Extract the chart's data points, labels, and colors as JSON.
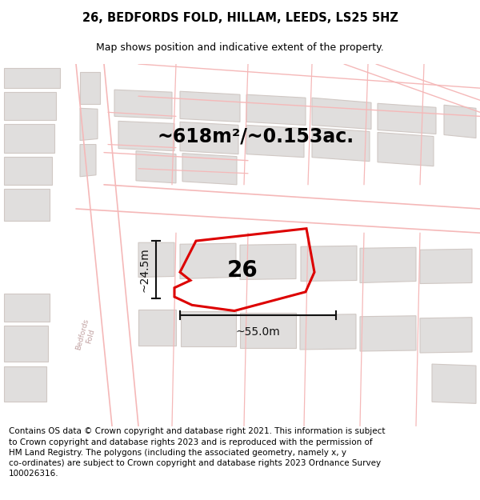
{
  "title": "26, BEDFORDS FOLD, HILLAM, LEEDS, LS25 5HZ",
  "subtitle": "Map shows position and indicative extent of the property.",
  "footer": "Contains OS data © Crown copyright and database right 2021. This information is subject to Crown copyright and database rights 2023 and is reproduced with the permission of HM Land Registry. The polygons (including the associated geometry, namely x, y co-ordinates) are subject to Crown copyright and database rights 2023 Ordnance Survey 100026316.",
  "area_label": "~618m²/~0.153ac.",
  "width_label": "~55.0m",
  "height_label": "~24.5m",
  "number_label": "26",
  "bg_color": "#ffffff",
  "map_bg": "#ffffff",
  "road_outline_color": "#f5b8b8",
  "building_color": "#e0dedd",
  "building_outline": "#d0c8c4",
  "highlight_color": "#dd0000",
  "dim_color": "#111111",
  "bedfords_text_color": "#c0a0a0",
  "title_fontsize": 10.5,
  "subtitle_fontsize": 9,
  "footer_fontsize": 7.5,
  "area_fontsize": 17,
  "dim_label_fontsize": 10,
  "number_fontsize": 20
}
